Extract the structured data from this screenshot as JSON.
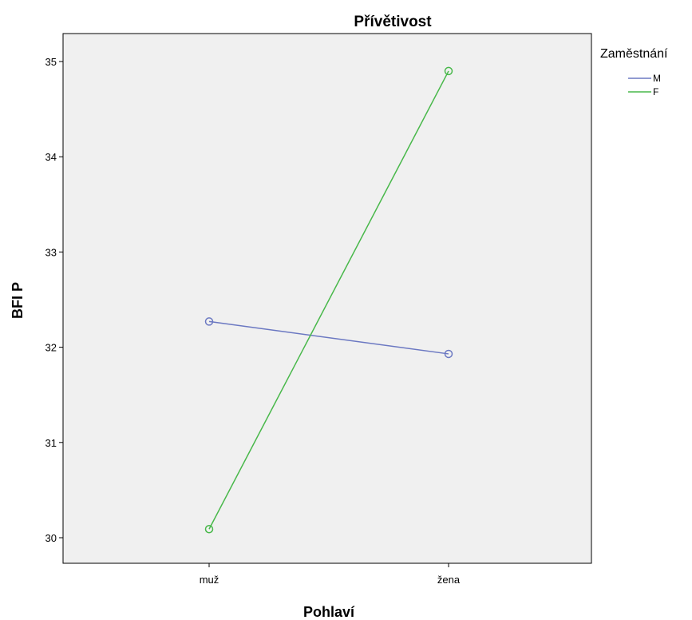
{
  "chart_data": {
    "type": "line",
    "title": "Přívětivost",
    "xlabel": "Pohlaví",
    "ylabel": "BFI P",
    "categories": [
      "muž",
      "žena"
    ],
    "series": [
      {
        "name": "M",
        "values": [
          32.27,
          31.93
        ],
        "color": "#6b78c2"
      },
      {
        "name": "F",
        "values": [
          30.09,
          34.9
        ],
        "color": "#48b84a"
      }
    ],
    "ylim": [
      29.7,
      35.5
    ],
    "yticks": [
      30,
      31,
      32,
      33,
      34,
      35
    ],
    "grid": false,
    "legend": {
      "title": "Zaměstnání",
      "placement": "right"
    },
    "plot_background": "#f0f0f0"
  }
}
